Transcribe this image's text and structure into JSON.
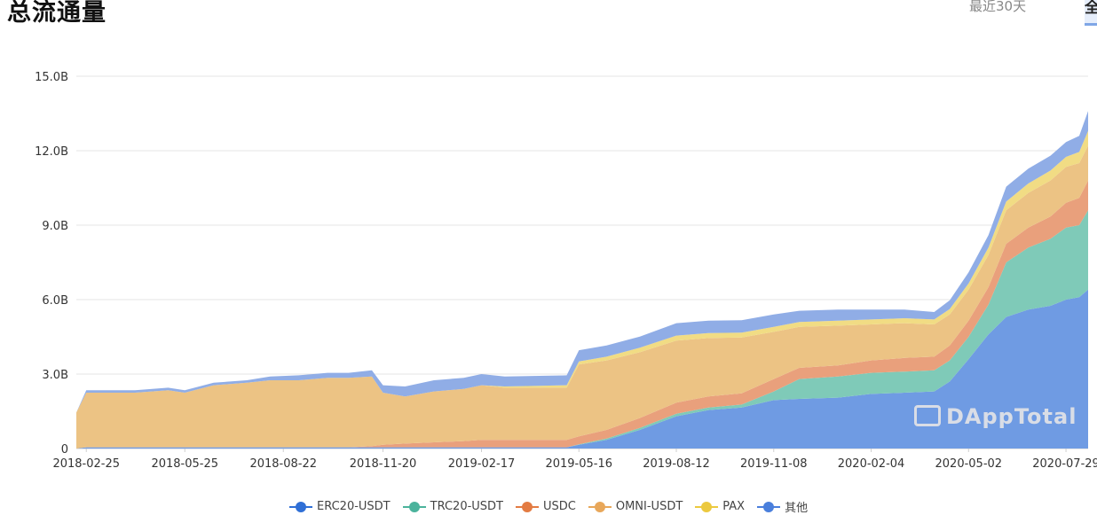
{
  "header": {
    "title": "总流通量",
    "range_30d": "最近30天",
    "range_all": "全"
  },
  "watermark": "DAppTotal",
  "chart_data": {
    "type": "area",
    "stacked": true,
    "ylim": [
      0,
      15000000000
    ],
    "yticks": [
      {
        "value": 0,
        "label": "0"
      },
      {
        "value": 3000000000,
        "label": "3.0B"
      },
      {
        "value": 6000000000,
        "label": "6.0B"
      },
      {
        "value": 9000000000,
        "label": "9.0B"
      },
      {
        "value": 12000000000,
        "label": "12.0B"
      },
      {
        "value": 15000000000,
        "label": "15.0B"
      }
    ],
    "x_start": "2018-02-16",
    "x_end": "2020-08-18",
    "xticks": [
      "2018-02-25",
      "2018-05-25",
      "2018-08-22",
      "2018-11-20",
      "2019-02-17",
      "2019-05-16",
      "2019-08-12",
      "2019-11-08",
      "2020-02-04",
      "2020-05-02",
      "2020-07-29"
    ],
    "grid": true,
    "legend_position": "bottom",
    "dates": [
      "2018-02-16",
      "2018-02-25",
      "2018-03-05",
      "2018-04-10",
      "2018-05-10",
      "2018-05-25",
      "2018-06-20",
      "2018-07-20",
      "2018-08-10",
      "2018-09-05",
      "2018-10-01",
      "2018-10-20",
      "2018-11-10",
      "2018-11-20",
      "2018-12-10",
      "2019-01-05",
      "2019-02-01",
      "2019-02-17",
      "2019-03-10",
      "2019-04-10",
      "2019-05-05",
      "2019-05-16",
      "2019-06-10",
      "2019-07-10",
      "2019-08-12",
      "2019-09-10",
      "2019-10-10",
      "2019-11-08",
      "2019-12-01",
      "2020-01-05",
      "2020-02-04",
      "2020-03-05",
      "2020-04-01",
      "2020-04-15",
      "2020-05-02",
      "2020-05-20",
      "2020-06-05",
      "2020-06-25",
      "2020-07-15",
      "2020-07-29",
      "2020-08-10",
      "2020-08-18"
    ],
    "series": [
      {
        "name": "其他",
        "color": "#6f9be3",
        "values": [
          0,
          0.05,
          0.05,
          0.05,
          0.05,
          0.05,
          0.05,
          0.05,
          0.05,
          0.05,
          0.05,
          0.05,
          0.05,
          0.05,
          0.05,
          0.05,
          0.05,
          0.05,
          0.05,
          0.05,
          0.05,
          0.15,
          0.35,
          0.75,
          1.3,
          1.55,
          1.65,
          1.95,
          2.0,
          2.05,
          2.2,
          2.25,
          2.3,
          2.7,
          3.6,
          4.6,
          5.3,
          5.6,
          5.75,
          6.0,
          6.1,
          6.4
        ]
      },
      {
        "name": "TRC20-USDT",
        "color": "#7fcab8",
        "values": [
          0,
          0,
          0,
          0,
          0,
          0,
          0,
          0,
          0,
          0,
          0,
          0,
          0,
          0,
          0,
          0,
          0,
          0,
          0,
          0,
          0,
          0.02,
          0.05,
          0.08,
          0.1,
          0.1,
          0.12,
          0.35,
          0.8,
          0.85,
          0.85,
          0.85,
          0.85,
          0.85,
          0.9,
          1.2,
          2.2,
          2.5,
          2.7,
          2.9,
          2.9,
          3.2
        ]
      },
      {
        "name": "USDC",
        "color": "#e9a07c",
        "values": [
          0,
          0,
          0,
          0,
          0,
          0,
          0,
          0,
          0,
          0,
          0,
          0,
          0.05,
          0.1,
          0.15,
          0.2,
          0.25,
          0.3,
          0.3,
          0.3,
          0.3,
          0.32,
          0.35,
          0.4,
          0.45,
          0.45,
          0.45,
          0.5,
          0.45,
          0.45,
          0.5,
          0.55,
          0.55,
          0.6,
          0.65,
          0.7,
          0.75,
          0.8,
          0.9,
          1.0,
          1.1,
          1.2
        ]
      },
      {
        "name": "OMNI-USDT",
        "color": "#ecc384",
        "values": [
          1.45,
          2.2,
          2.2,
          2.2,
          2.3,
          2.2,
          2.5,
          2.6,
          2.7,
          2.7,
          2.8,
          2.8,
          2.8,
          2.1,
          1.9,
          2.05,
          2.1,
          2.2,
          2.1,
          2.1,
          2.1,
          2.9,
          2.8,
          2.65,
          2.5,
          2.35,
          2.25,
          1.9,
          1.65,
          1.6,
          1.45,
          1.4,
          1.3,
          1.25,
          1.25,
          1.3,
          1.35,
          1.4,
          1.45,
          1.45,
          1.4,
          1.4
        ]
      },
      {
        "name": "PAX",
        "color": "#f1dc84",
        "values": [
          0,
          0,
          0,
          0,
          0,
          0,
          0,
          0,
          0,
          0,
          0,
          0,
          0,
          0,
          0,
          0,
          0,
          0,
          0.05,
          0.08,
          0.1,
          0.12,
          0.15,
          0.18,
          0.2,
          0.2,
          0.2,
          0.2,
          0.2,
          0.2,
          0.2,
          0.2,
          0.2,
          0.22,
          0.25,
          0.3,
          0.35,
          0.38,
          0.4,
          0.4,
          0.45,
          0.6
        ]
      },
      {
        "name": "ERC20-USDT",
        "color": "#90ade6",
        "values": [
          0,
          0.1,
          0.1,
          0.1,
          0.1,
          0.1,
          0.1,
          0.1,
          0.15,
          0.2,
          0.2,
          0.2,
          0.25,
          0.3,
          0.4,
          0.45,
          0.45,
          0.45,
          0.4,
          0.4,
          0.4,
          0.45,
          0.45,
          0.45,
          0.5,
          0.5,
          0.5,
          0.5,
          0.45,
          0.45,
          0.4,
          0.35,
          0.3,
          0.35,
          0.45,
          0.5,
          0.6,
          0.6,
          0.6,
          0.6,
          0.65,
          0.8
        ]
      }
    ],
    "legend": [
      {
        "name": "ERC20-USDT",
        "color": "#2f6fd6"
      },
      {
        "name": "TRC20-USDT",
        "color": "#4bb39c"
      },
      {
        "name": "USDC",
        "color": "#e37b42"
      },
      {
        "name": "OMNI-USDT",
        "color": "#e8a75a"
      },
      {
        "name": "PAX",
        "color": "#ecc93f"
      },
      {
        "name": "其他",
        "color": "#4a7fdc"
      }
    ]
  }
}
